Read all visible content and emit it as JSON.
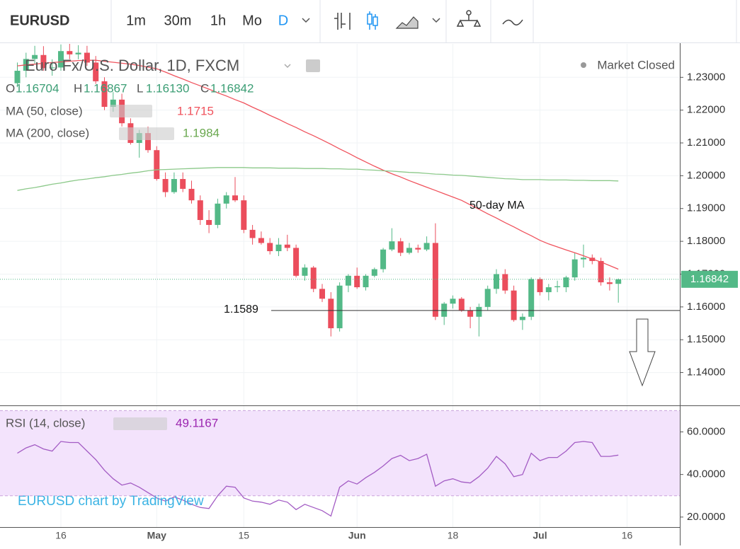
{
  "toolbar": {
    "symbol": "EURUSD",
    "intervals": [
      "1m",
      "30m",
      "1h",
      "Mo",
      "D"
    ]
  },
  "chart_data": [
    {
      "type": "candlestick",
      "title": "Euro Fx/U.S. Dollar, 1D, FXCM",
      "status": "Market Closed",
      "ohlc_names": [
        "O",
        "H",
        "L",
        "C"
      ],
      "ohlc_value_labels": [
        "1.16704",
        "1.16867",
        "1.16130",
        "1.16842"
      ],
      "categories": [
        null,
        null,
        null,
        null,
        null,
        "16",
        null,
        null,
        null,
        null,
        null,
        null,
        null,
        null,
        null,
        null,
        "May",
        null,
        null,
        null,
        null,
        null,
        null,
        null,
        null,
        null,
        "15",
        null,
        null,
        null,
        null,
        null,
        null,
        null,
        null,
        null,
        null,
        null,
        null,
        "Jun",
        null,
        null,
        null,
        null,
        null,
        null,
        null,
        null,
        null,
        null,
        "18",
        null,
        null,
        null,
        null,
        null,
        null,
        null,
        null,
        null,
        "Jul",
        null,
        null,
        null,
        null,
        null,
        null,
        null,
        null,
        null,
        "16"
      ],
      "open": [
        1.2282,
        1.232,
        1.2356,
        1.2368,
        1.2328,
        1.233,
        1.238,
        1.237,
        1.2375,
        1.2345,
        1.2288,
        1.221,
        1.2232,
        1.216,
        1.21,
        1.213,
        1.2078,
        1.199,
        1.195,
        1.199,
        1.196,
        1.1925,
        1.1865,
        1.185,
        1.1915,
        1.194,
        1.1925,
        1.1835,
        1.181,
        1.1795,
        1.177,
        1.179,
        1.178,
        1.1695,
        1.172,
        1.1655,
        1.1625,
        1.1535,
        1.1665,
        1.1695,
        1.166,
        1.1695,
        1.1715,
        1.1775,
        1.18,
        1.1765,
        1.178,
        1.1775,
        1.1795,
        1.157,
        1.161,
        1.1625,
        1.159,
        1.157,
        1.16,
        1.1655,
        1.17,
        1.165,
        1.156,
        1.157,
        1.1685,
        1.1645,
        1.166,
        1.166,
        1.169,
        1.1745,
        1.175,
        1.174,
        1.1675,
        1.16704,
        null
      ],
      "high": [
        1.2345,
        1.2375,
        1.2396,
        1.2395,
        1.2355,
        1.24,
        1.2414,
        1.2398,
        1.2396,
        1.2365,
        1.23,
        1.2255,
        1.225,
        1.2175,
        1.214,
        1.215,
        1.209,
        1.201,
        1.201,
        1.201,
        1.1985,
        1.194,
        1.1895,
        1.193,
        1.195,
        1.1996,
        1.194,
        1.185,
        1.183,
        1.181,
        1.181,
        1.182,
        1.179,
        1.173,
        1.1725,
        1.167,
        1.1645,
        1.1675,
        1.17,
        1.172,
        1.17,
        1.172,
        1.178,
        1.184,
        1.181,
        1.1795,
        1.179,
        1.1815,
        1.1855,
        1.1615,
        1.1635,
        1.163,
        1.16,
        1.161,
        1.1665,
        1.1715,
        1.1715,
        1.1665,
        1.158,
        1.169,
        1.169,
        1.167,
        1.168,
        1.1695,
        1.1765,
        1.179,
        1.176,
        1.175,
        1.169,
        1.16867,
        null
      ],
      "low": [
        1.227,
        1.23,
        1.234,
        1.232,
        1.2305,
        1.232,
        1.2355,
        1.2355,
        1.2335,
        1.228,
        1.22,
        1.2195,
        1.215,
        1.2095,
        1.2055,
        1.207,
        1.1985,
        1.1935,
        1.1945,
        1.195,
        1.1915,
        1.185,
        1.1825,
        1.184,
        1.19,
        1.192,
        1.1825,
        1.179,
        1.179,
        1.176,
        1.1755,
        1.177,
        1.169,
        1.168,
        1.1645,
        1.1615,
        1.151,
        1.1525,
        1.1645,
        1.1655,
        1.165,
        1.169,
        1.1705,
        1.177,
        1.1755,
        1.176,
        1.1765,
        1.177,
        1.156,
        1.1545,
        1.1595,
        1.1585,
        1.1535,
        1.151,
        1.159,
        1.164,
        1.164,
        1.1555,
        1.153,
        1.156,
        1.1635,
        1.162,
        1.1645,
        1.1645,
        1.168,
        1.172,
        1.173,
        1.1665,
        1.165,
        1.1613,
        null
      ],
      "close": [
        1.232,
        1.2356,
        1.2368,
        1.2328,
        1.233,
        1.238,
        1.237,
        1.2375,
        1.2345,
        1.2288,
        1.221,
        1.2232,
        1.216,
        1.21,
        1.213,
        1.2078,
        1.199,
        1.195,
        1.199,
        1.196,
        1.1925,
        1.1865,
        1.185,
        1.1915,
        1.194,
        1.1925,
        1.1835,
        1.181,
        1.1795,
        1.177,
        1.179,
        1.178,
        1.1695,
        1.172,
        1.1655,
        1.1625,
        1.1535,
        1.1665,
        1.1695,
        1.166,
        1.1695,
        1.1715,
        1.1775,
        1.18,
        1.1765,
        1.178,
        1.1775,
        1.1795,
        1.157,
        1.161,
        1.1625,
        1.159,
        1.157,
        1.16,
        1.1655,
        1.17,
        1.165,
        1.156,
        1.157,
        1.1685,
        1.1645,
        1.166,
        1.1663,
        1.169,
        1.1745,
        1.175,
        1.174,
        1.1675,
        1.167,
        1.16842,
        null
      ],
      "up_color": "#53b987",
      "down_color": "#eb4d5c",
      "series": [
        {
          "name": "MA (50, close)",
          "color": "#f0535d",
          "values": [
            1.2335,
            1.2338,
            1.234,
            1.2343,
            1.2345,
            1.2347,
            1.2349,
            1.2351,
            1.2352,
            1.2352,
            1.2349,
            1.2346,
            1.2343,
            1.234,
            1.2336,
            1.2331,
            1.2326,
            1.2316,
            1.2305,
            1.2295,
            1.2284,
            1.2274,
            1.2264,
            1.2253,
            1.2243,
            1.2232,
            1.2222,
            1.2209,
            1.2197,
            1.2184,
            1.2172,
            1.2159,
            1.2147,
            1.2134,
            1.2122,
            1.2109,
            1.2096,
            1.2082,
            1.2069,
            1.2055,
            1.2042,
            1.2029,
            1.2017,
            1.2006,
            1.1996,
            1.1985,
            1.1975,
            1.1965,
            1.1955,
            1.1945,
            1.1935,
            1.1925,
            1.1911,
            1.1898,
            1.1884,
            1.1871,
            1.1857,
            1.1844,
            1.183,
            1.1817,
            1.1803,
            1.1792,
            1.1783,
            1.1774,
            1.1765,
            1.1756,
            1.1746,
            1.1737,
            1.1726,
            1.1715,
            null
          ]
        },
        {
          "name": "MA (200, close)",
          "color": "#8cc98a",
          "values": [
            1.1955,
            1.196,
            1.1964,
            1.1969,
            1.1974,
            1.1978,
            1.1983,
            1.1987,
            1.199,
            1.1994,
            1.1997,
            1.2001,
            1.2004,
            1.2008,
            1.2011,
            1.2015,
            1.2018,
            1.2019,
            1.202,
            1.2021,
            1.2022,
            1.2023,
            1.2024,
            1.2025,
            1.2025,
            1.2025,
            1.2025,
            1.2024,
            1.2024,
            1.2024,
            1.2023,
            1.2023,
            1.2023,
            1.2022,
            1.2022,
            1.2022,
            1.2021,
            1.2021,
            1.202,
            1.202,
            1.2018,
            1.2017,
            1.2015,
            1.2014,
            1.2012,
            1.201,
            1.2009,
            1.2007,
            1.2005,
            1.2004,
            1.2002,
            1.2001,
            1.1999,
            1.1997,
            1.1995,
            1.1993,
            1.1991,
            1.199,
            1.1988,
            1.1988,
            1.1988,
            1.1987,
            1.1987,
            1.1987,
            1.1986,
            1.1986,
            1.1985,
            1.1985,
            1.1985,
            1.1984,
            null
          ]
        }
      ],
      "ylim": [
        1.1302,
        1.2402
      ],
      "yticks": [
        {
          "value": 1.14,
          "label": "1.14000"
        },
        {
          "value": 1.15,
          "label": "1.15000"
        },
        {
          "value": 1.16,
          "label": "1.16000"
        },
        {
          "value": 1.17,
          "label": "1.17000"
        },
        {
          "value": 1.18,
          "label": "1.18000"
        },
        {
          "value": 1.19,
          "label": "1.19000"
        },
        {
          "value": 1.2,
          "label": "1.20000"
        },
        {
          "value": 1.21,
          "label": "1.21000"
        },
        {
          "value": 1.22,
          "label": "1.22000"
        },
        {
          "value": 1.23,
          "label": "1.23000"
        }
      ],
      "grid": true,
      "annotation": "50-day MA",
      "support_level": 1.1589,
      "watermark": "EURUSD chart by TradingView"
    },
    {
      "type": "line",
      "series": [
        {
          "name": "RSI (14, close)",
          "color": "#a35cc4",
          "values": [
            50,
            52.5,
            54,
            52,
            51,
            55.5,
            55,
            55,
            51,
            47,
            42,
            38,
            35,
            36,
            34,
            31.5,
            29,
            27.5,
            29.5,
            28,
            26,
            24.5,
            24,
            30,
            34.5,
            34,
            29,
            27.5,
            27,
            26,
            28,
            27,
            23.5,
            26,
            24.5,
            23,
            20.5,
            34,
            37,
            35.5,
            38.5,
            41,
            44,
            47.5,
            49,
            46.5,
            47.5,
            49.5,
            34.5,
            37,
            38,
            36.5,
            36,
            39,
            43,
            48.5,
            45,
            39,
            40,
            50,
            46.5,
            48,
            48,
            51,
            55,
            55.5,
            55,
            48.5,
            48.5,
            49.1167,
            null
          ]
        }
      ],
      "ylim": [
        15.3,
        71.8
      ],
      "yticks": [
        {
          "value": 20,
          "label": "20.0000"
        },
        {
          "value": 40,
          "label": "40.0000"
        },
        {
          "value": 60,
          "label": "60.0000"
        }
      ],
      "bands": [
        30,
        70
      ],
      "band_color": "#f3e3fc"
    }
  ]
}
